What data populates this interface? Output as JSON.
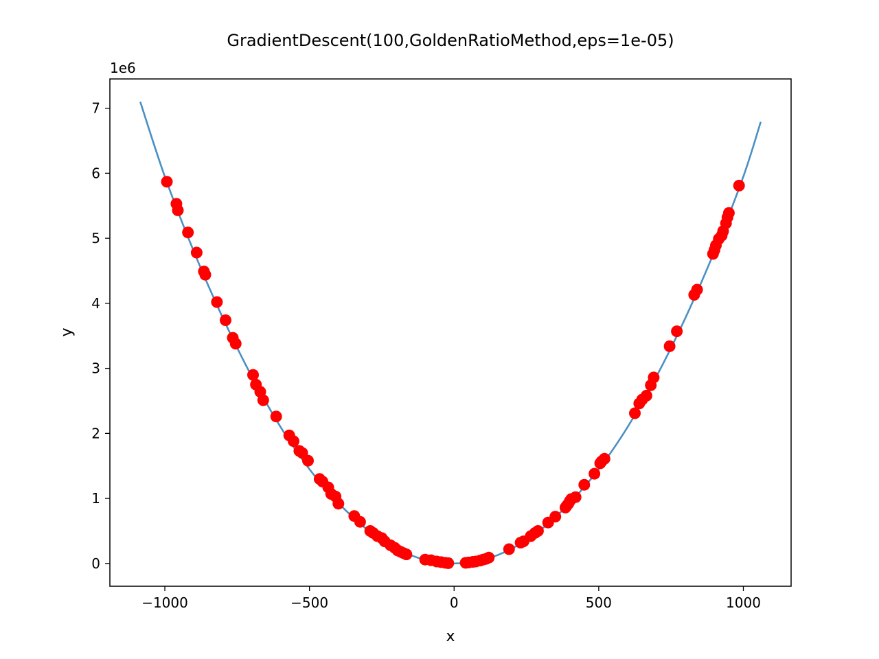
{
  "chart_data": {
    "type": "scatter",
    "title": "GradientDescent(100,GoldenRatioMethod,eps=1e-05)",
    "xlabel": "x",
    "ylabel": "y",
    "y_offset_label": "1e6",
    "y_scale": 1000000,
    "xlim": [
      -1190,
      1165
    ],
    "ylim": [
      -350000,
      7450000
    ],
    "x_ticks": [
      -1000,
      -500,
      0,
      500,
      1000
    ],
    "x_tick_labels": [
      "−1000",
      "−500",
      "0",
      "500",
      "1000"
    ],
    "y_ticks": [
      0,
      1000000,
      2000000,
      3000000,
      4000000,
      5000000,
      6000000,
      7000000
    ],
    "y_tick_labels": [
      "0",
      "1",
      "2",
      "3",
      "4",
      "5",
      "6",
      "7"
    ],
    "grid": false,
    "curve": {
      "color": "#4a90c4",
      "x": [
        -1085,
        -1000,
        -900,
        -800,
        -700,
        -600,
        -500,
        -400,
        -300,
        -200,
        -100,
        0,
        100,
        200,
        300,
        400,
        500,
        600,
        700,
        800,
        900,
        1000,
        1060
      ],
      "y": [
        7100000,
        5950000,
        4800000,
        3780000,
        2880000,
        2100000,
        1450000,
        930000,
        520000,
        230000,
        55000,
        0,
        55000,
        230000,
        520000,
        930000,
        1450000,
        2100000,
        2880000,
        3780000,
        4800000,
        5950000,
        6790000
      ]
    },
    "points": {
      "color": "#ff0000",
      "x": [
        -993,
        -960,
        -955,
        -920,
        -890,
        -865,
        -860,
        -820,
        -790,
        -765,
        -755,
        -695,
        -685,
        -670,
        -660,
        -615,
        -570,
        -555,
        -535,
        -525,
        -505,
        -465,
        -455,
        -435,
        -425,
        -410,
        -400,
        -345,
        -325,
        -290,
        -280,
        -265,
        -250,
        -240,
        -220,
        -205,
        -195,
        -185,
        -175,
        -165,
        -100,
        -80,
        -60,
        -45,
        -30,
        -20,
        40,
        50,
        65,
        75,
        90,
        100,
        110,
        120,
        190,
        230,
        240,
        265,
        280,
        290,
        325,
        350,
        385,
        390,
        395,
        400,
        405,
        420,
        450,
        485,
        505,
        510,
        520,
        625,
        640,
        650,
        665,
        680,
        690,
        745,
        770,
        830,
        840,
        895,
        900,
        905,
        915,
        925,
        930,
        940,
        945,
        950,
        985
      ],
      "y": [
        5870000,
        5530000,
        5430000,
        5090000,
        4780000,
        4490000,
        4440000,
        4020000,
        3740000,
        3470000,
        3380000,
        2900000,
        2750000,
        2640000,
        2510000,
        2260000,
        1970000,
        1880000,
        1730000,
        1700000,
        1580000,
        1300000,
        1260000,
        1170000,
        1070000,
        1030000,
        920000,
        730000,
        640000,
        500000,
        470000,
        420000,
        390000,
        340000,
        280000,
        240000,
        200000,
        180000,
        160000,
        140000,
        60000,
        50000,
        30000,
        20000,
        10000,
        5000,
        10000,
        15000,
        25000,
        30000,
        45000,
        60000,
        70000,
        90000,
        220000,
        320000,
        340000,
        420000,
        470000,
        500000,
        630000,
        720000,
        860000,
        890000,
        920000,
        960000,
        990000,
        1020000,
        1210000,
        1380000,
        1540000,
        1570000,
        1610000,
        2310000,
        2460000,
        2520000,
        2580000,
        2740000,
        2860000,
        3340000,
        3570000,
        4130000,
        4210000,
        4760000,
        4820000,
        4890000,
        4990000,
        5040000,
        5110000,
        5230000,
        5320000,
        5390000,
        5810000
      ]
    }
  }
}
